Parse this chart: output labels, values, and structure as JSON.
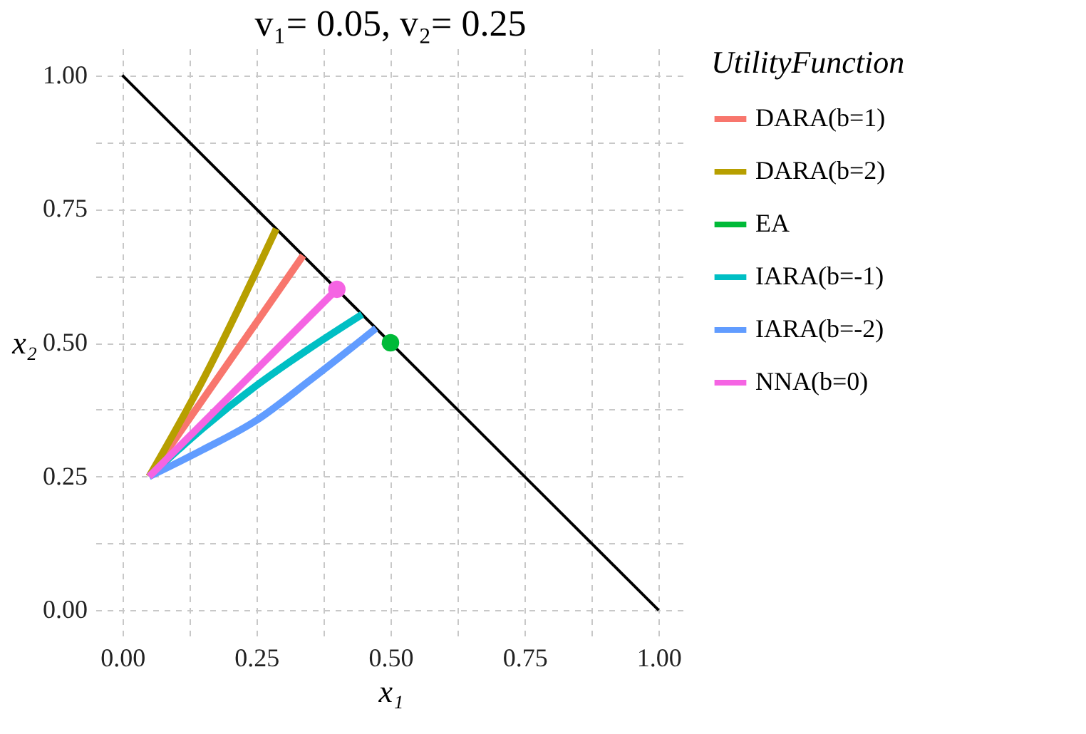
{
  "chart_data": {
    "type": "line",
    "title": "v₁= 0.05, v₂= 0.25",
    "xlabel": "x₁",
    "ylabel": "x₂",
    "legend_title": "UtilityFunction",
    "xlim": [
      -0.05,
      1.05
    ],
    "ylim": [
      -0.05,
      1.05
    ],
    "xticks": [
      {
        "value": 0,
        "label": "0.00"
      },
      {
        "value": 0.125,
        "label": null
      },
      {
        "value": 0.25,
        "label": "0.25"
      },
      {
        "value": 0.375,
        "label": null
      },
      {
        "value": 0.5,
        "label": "0.50"
      },
      {
        "value": 0.625,
        "label": null
      },
      {
        "value": 0.75,
        "label": "0.75"
      },
      {
        "value": 0.875,
        "label": null
      },
      {
        "value": 1,
        "label": "1.00"
      }
    ],
    "yticks": [
      {
        "value": 0,
        "label": "0.00"
      },
      {
        "value": 0.125,
        "label": null
      },
      {
        "value": 0.25,
        "label": "0.25"
      },
      {
        "value": 0.375,
        "label": null
      },
      {
        "value": 0.5,
        "label": "0.50"
      },
      {
        "value": 0.625,
        "label": null
      },
      {
        "value": 0.75,
        "label": "0.75"
      },
      {
        "value": 0.875,
        "label": null
      },
      {
        "value": 1,
        "label": "1.00"
      }
    ],
    "grid": true,
    "legend": "right",
    "series": [
      {
        "type": "line",
        "color": "#000000",
        "x": [
          0,
          1
        ],
        "values": [
          1,
          0
        ]
      },
      {
        "name": "DARA(b=1)",
        "color": "#f8766d",
        "x": [
          0.05,
          0.337
        ],
        "values": [
          0.25,
          0.663
        ]
      },
      {
        "name": "DARA(b=2)",
        "color": "#b79f00",
        "x": [
          0.05,
          0.15,
          0.287
        ],
        "values": [
          0.25,
          0.43,
          0.713
        ]
      },
      {
        "name": "EA",
        "type": "scatter",
        "marker": "circle",
        "color": "#00ba38",
        "x": [
          0.5
        ],
        "values": [
          0.5
        ]
      },
      {
        "name": "IARA(b=-1)",
        "color": "#00bfc4",
        "x": [
          0.05,
          0.15,
          0.25,
          0.35,
          0.447
        ],
        "values": [
          0.25,
          0.34,
          0.42,
          0.49,
          0.553
        ]
      },
      {
        "name": "IARA(b=-2)",
        "color": "#619cff",
        "x": [
          0.05,
          0.15,
          0.25,
          0.35,
          0.473
        ],
        "values": [
          0.25,
          0.3,
          0.355,
          0.43,
          0.527
        ]
      },
      {
        "name": "NNA(b=0)",
        "color": "#f564e3",
        "x": [
          0.05,
          0.4
        ],
        "values": [
          0.25,
          0.6
        ]
      },
      {
        "type": "scatter",
        "marker": "circle",
        "color": "#f564e3",
        "x": [
          0.4
        ],
        "values": [
          0.6
        ]
      }
    ]
  }
}
